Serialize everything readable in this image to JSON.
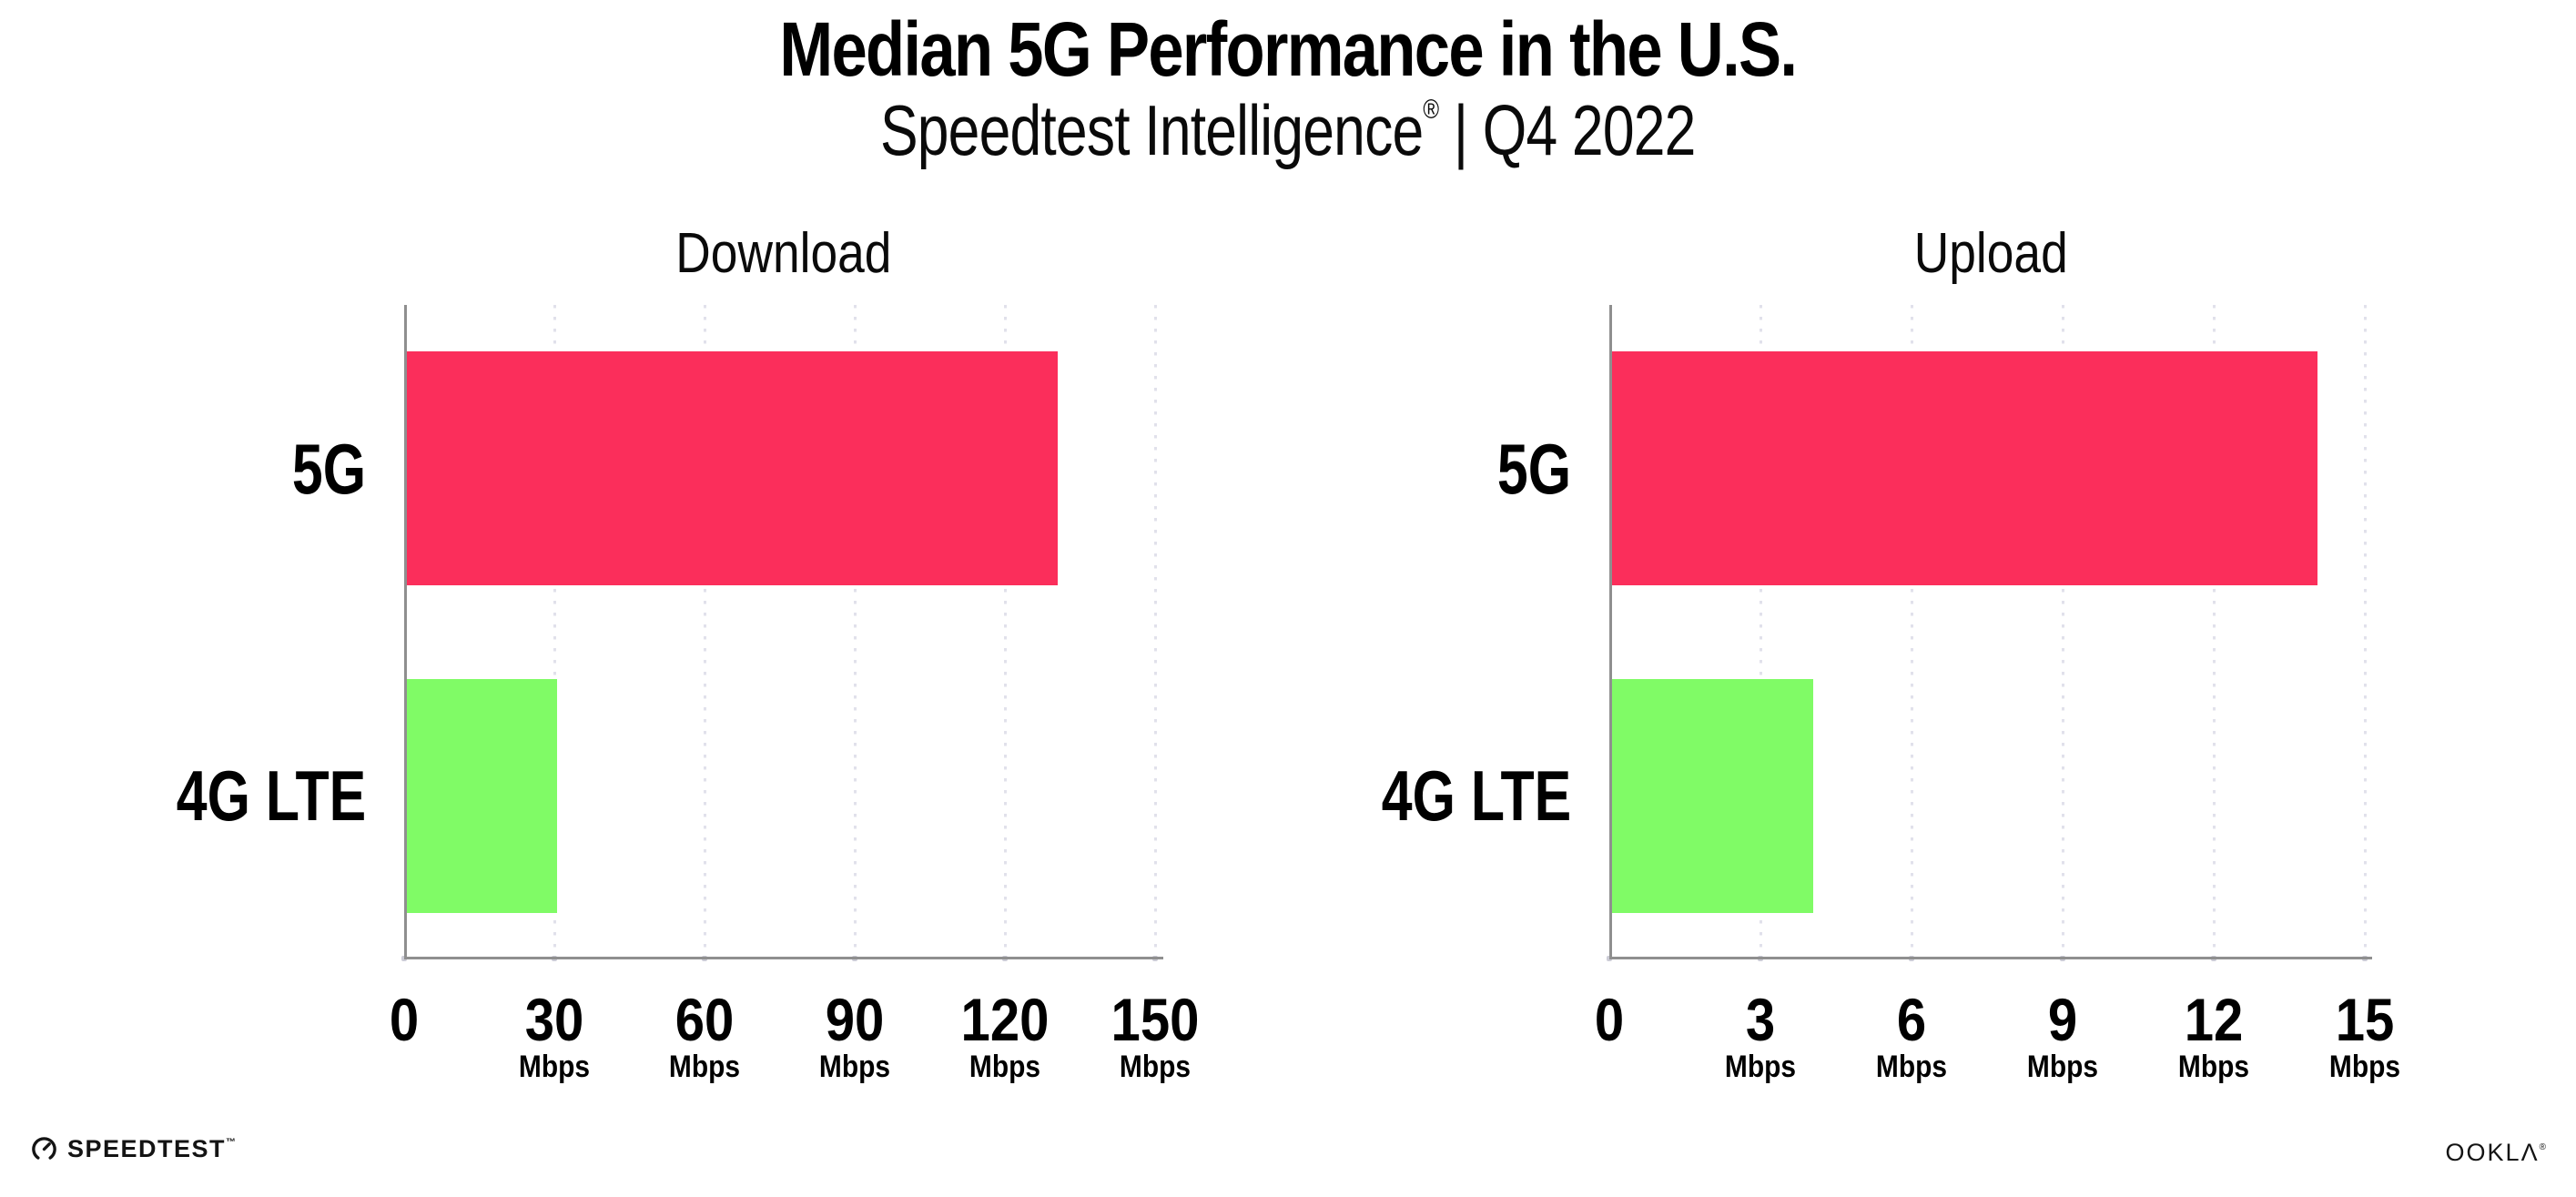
{
  "header": {
    "title": "Median 5G Performance in the U.S.",
    "subtitle_brand": "Speedtest Intelligence",
    "subtitle_reg": "®",
    "subtitle_rest": " | Q4 2022"
  },
  "colors": {
    "bar_5g": "#fb2e5b",
    "bar_4g_lte": "#80fb66",
    "axis_line": "#8f8f8f",
    "gridline_dot": "#e1e1eb",
    "tick_dot": "#ccccd6",
    "text": "#000000"
  },
  "chart_data": [
    {
      "type": "bar",
      "orientation": "horizontal",
      "title": "Download",
      "categories": [
        "5G",
        "4G LTE"
      ],
      "values": [
        130,
        30
      ],
      "unit": "Mbps",
      "xlabel": "",
      "ylabel": "",
      "xlim": [
        0,
        150
      ],
      "xticks": [
        0,
        30,
        60,
        90,
        120,
        150
      ],
      "grid": "dotted-vertical",
      "legend": "none"
    },
    {
      "type": "bar",
      "orientation": "horizontal",
      "title": "Upload",
      "categories": [
        "5G",
        "4G LTE"
      ],
      "values": [
        14,
        4
      ],
      "unit": "Mbps",
      "xlabel": "",
      "ylabel": "",
      "xlim": [
        0,
        15
      ],
      "xticks": [
        0,
        3,
        6,
        9,
        12,
        15
      ],
      "grid": "dotted-vertical",
      "legend": "none"
    }
  ],
  "footer": {
    "speedtest_logo_text": "SPEEDTEST",
    "speedtest_tm": "™",
    "speedtest_icon": "gauge-icon",
    "ookla_logo_text": "OOKLΛ",
    "ookla_reg": "®"
  }
}
